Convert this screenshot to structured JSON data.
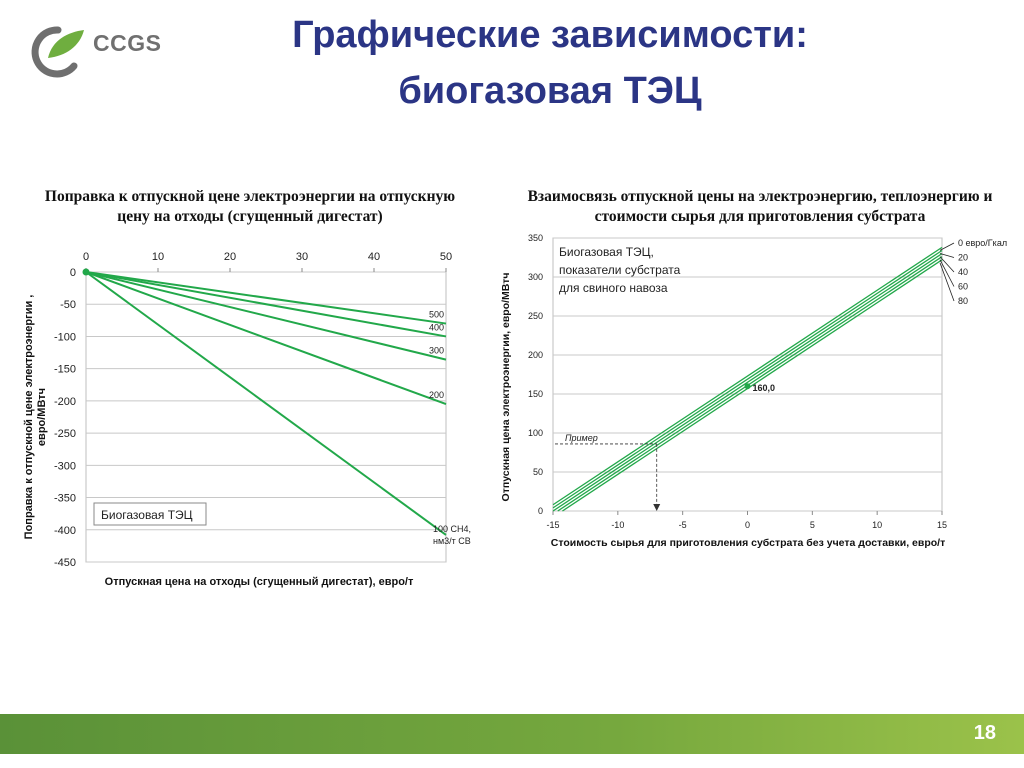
{
  "logo": {
    "text": "CCGS"
  },
  "slide": {
    "title_line1": "Графические зависимости:",
    "title_line2": "биогазовая ТЭЦ",
    "page_number": "18"
  },
  "colors": {
    "series": "#22a84a",
    "title": "#2b3585",
    "footer": "#6ea13c"
  },
  "chart_data": [
    {
      "type": "line",
      "title_line1": "Поправка к отпускной цене электроэнергии на отпускную",
      "title_line2": "цену на отходы (сгущенный дигестат)",
      "xlabel": "Отпускная цена на отходы (сгущенный дигестат), евро/т",
      "ylabel_line1": "Поправка к отпускной цене электроэнергии ,",
      "ylabel_line2": "евро/МВтч",
      "xlim": [
        0,
        50
      ],
      "ylim": [
        -450,
        0
      ],
      "x_ticks": [
        "0",
        "10",
        "20",
        "30",
        "40",
        "50"
      ],
      "y_ticks": [
        "0",
        "-50",
        "-100",
        "-150",
        "-200",
        "-250",
        "-300",
        "-350",
        "-400",
        "-450"
      ],
      "x_axis_position": "top",
      "annotation": "Биогазовая ТЭЦ",
      "series": [
        {
          "name": "500",
          "x": [
            0,
            50
          ],
          "y": [
            0,
            -80
          ]
        },
        {
          "name": "400",
          "x": [
            0,
            50
          ],
          "y": [
            0,
            -100
          ]
        },
        {
          "name": "300",
          "x": [
            0,
            50
          ],
          "y": [
            0,
            -136
          ]
        },
        {
          "name": "200",
          "x": [
            0,
            50
          ],
          "y": [
            0,
            -205
          ]
        },
        {
          "name_line1": "100 CH4,",
          "name_line2": "нм3/т СВ",
          "x": [
            0,
            50
          ],
          "y": [
            0,
            -408
          ]
        }
      ]
    },
    {
      "type": "line",
      "title_line1": "Взаимосвязь отпускной цены на электроэнергию, теплоэнергию и",
      "title_line2": "стоимости сырья для приготовления субстрата",
      "xlabel": "Стоимость сырья для приготовления субстрата без учета доставки, евро/т",
      "ylabel": "Отпускная цена электроэнергии, евро/МВтч",
      "xlim": [
        -15,
        15
      ],
      "ylim": [
        0,
        350
      ],
      "x_ticks": [
        "-15",
        "-10",
        "-5",
        "0",
        "5",
        "10",
        "15"
      ],
      "y_ticks": [
        "0",
        "50",
        "100",
        "150",
        "200",
        "250",
        "300",
        "350"
      ],
      "annotation_lines": [
        "Биогазовая ТЭЦ,",
        "показатели субстрата",
        "для свиного навоза"
      ],
      "point": {
        "x": 0,
        "y": 160,
        "label": "160,0"
      },
      "example": {
        "label": "Пример",
        "y": 86,
        "x": -7
      },
      "series": [
        {
          "name": "0 евро/Гкал",
          "x": [
            -15,
            15
          ],
          "y": [
            8,
            338
          ]
        },
        {
          "name": "20",
          "x": [
            -15,
            15
          ],
          "y": [
            4,
            334
          ]
        },
        {
          "name": "40",
          "x": [
            -15,
            15
          ],
          "y": [
            0,
            330
          ]
        },
        {
          "name": "60",
          "x": [
            -15,
            15
          ],
          "y": [
            -4,
            326
          ]
        },
        {
          "name": "80",
          "x": [
            -15,
            15
          ],
          "y": [
            -8,
            322
          ]
        }
      ]
    }
  ]
}
